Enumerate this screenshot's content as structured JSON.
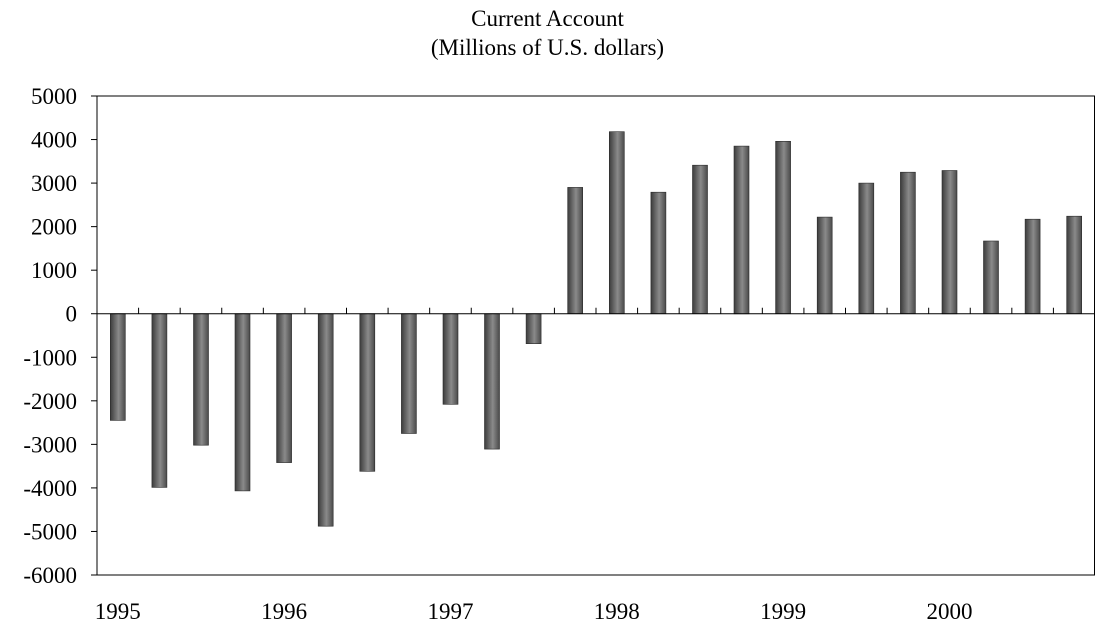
{
  "chart_data": {
    "type": "bar",
    "title": "Current Account",
    "subtitle": "(Millions of U.S. dollars)",
    "xlabel": "",
    "ylabel": "",
    "frequency": "quarterly",
    "x_tick_labels": [
      "1995",
      "1996",
      "1997",
      "1998",
      "1999",
      "2000"
    ],
    "categories": [
      "1995 Q1",
      "1995 Q2",
      "1995 Q3",
      "1995 Q4",
      "1996 Q1",
      "1996 Q2",
      "1996 Q3",
      "1996 Q4",
      "1997 Q1",
      "1997 Q2",
      "1997 Q3",
      "1997 Q4",
      "1998 Q1",
      "1998 Q2",
      "1998 Q3",
      "1998 Q4",
      "1999 Q1",
      "1999 Q2",
      "1999 Q3",
      "1999 Q4",
      "2000 Q1",
      "2000 Q2",
      "2000 Q3",
      "2000 Q4"
    ],
    "values": [
      -2450,
      -3990,
      -3020,
      -4070,
      -3420,
      -4880,
      -3620,
      -2750,
      -2080,
      -3110,
      -690,
      2900,
      4180,
      2790,
      3410,
      3850,
      3960,
      2220,
      3000,
      3250,
      3290,
      1670,
      2170,
      2240
    ],
    "ylim": [
      -6000,
      5000
    ],
    "y_ticks": [
      5000,
      4000,
      3000,
      2000,
      1000,
      0,
      -1000,
      -2000,
      -3000,
      -4000,
      -5000,
      -6000
    ],
    "grid": false,
    "legend": "none",
    "bar_color": "#6e6e6e"
  }
}
